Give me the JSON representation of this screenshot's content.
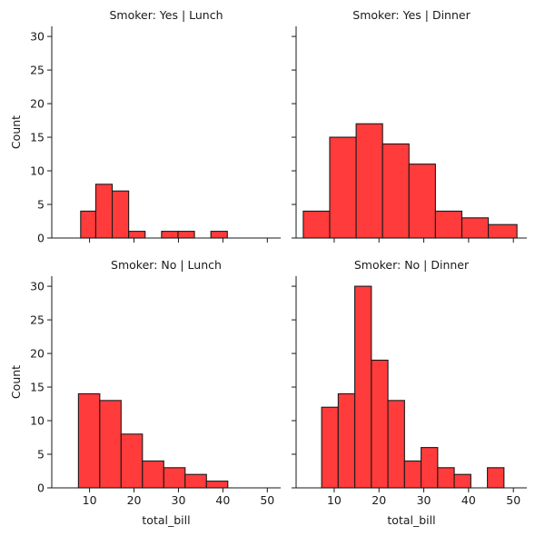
{
  "chart_data": {
    "type": "bar",
    "shared_y_ticks": [
      0,
      5,
      10,
      15,
      20,
      25,
      30
    ],
    "shared_x_ticks": [
      10,
      20,
      30,
      40,
      50
    ],
    "xlim": [
      1.5,
      53
    ],
    "ylim": [
      0,
      31.5
    ],
    "xlabel": "total_bill",
    "ylabel": "Count",
    "bar_color": "#ff3b3b",
    "edge_color": "#1a1a1a",
    "panels": [
      {
        "title": "Smoker: Yes | Lunch",
        "bins": [
          {
            "x0": 8.0,
            "x1": 11.4,
            "count": 4
          },
          {
            "x0": 11.4,
            "x1": 15.1,
            "count": 8
          },
          {
            "x0": 15.1,
            "x1": 18.8,
            "count": 7
          },
          {
            "x0": 18.8,
            "x1": 22.5,
            "count": 1
          },
          {
            "x0": 22.5,
            "x1": 26.2,
            "count": 0
          },
          {
            "x0": 26.2,
            "x1": 29.9,
            "count": 1
          },
          {
            "x0": 29.9,
            "x1": 33.6,
            "count": 1
          },
          {
            "x0": 33.6,
            "x1": 37.3,
            "count": 0
          },
          {
            "x0": 37.3,
            "x1": 41.0,
            "count": 1
          }
        ]
      },
      {
        "title": "Smoker: Yes | Dinner",
        "bins": [
          {
            "x0": 3.1,
            "x1": 9.0,
            "count": 4
          },
          {
            "x0": 9.0,
            "x1": 14.9,
            "count": 15
          },
          {
            "x0": 14.9,
            "x1": 20.8,
            "count": 17
          },
          {
            "x0": 20.8,
            "x1": 26.7,
            "count": 14
          },
          {
            "x0": 26.7,
            "x1": 32.6,
            "count": 11
          },
          {
            "x0": 32.6,
            "x1": 38.5,
            "count": 4
          },
          {
            "x0": 38.5,
            "x1": 44.4,
            "count": 3
          },
          {
            "x0": 44.4,
            "x1": 50.8,
            "count": 2
          }
        ]
      },
      {
        "title": "Smoker: No | Lunch",
        "bins": [
          {
            "x0": 7.5,
            "x1": 12.3,
            "count": 14
          },
          {
            "x0": 12.3,
            "x1": 17.1,
            "count": 13
          },
          {
            "x0": 17.1,
            "x1": 21.9,
            "count": 8
          },
          {
            "x0": 21.9,
            "x1": 26.7,
            "count": 4
          },
          {
            "x0": 26.7,
            "x1": 31.5,
            "count": 3
          },
          {
            "x0": 31.5,
            "x1": 36.3,
            "count": 2
          },
          {
            "x0": 36.3,
            "x1": 41.1,
            "count": 1
          }
        ]
      },
      {
        "title": "Smoker: No | Dinner",
        "bins": [
          {
            "x0": 7.2,
            "x1": 10.9,
            "count": 12
          },
          {
            "x0": 10.9,
            "x1": 14.6,
            "count": 14
          },
          {
            "x0": 14.6,
            "x1": 18.3,
            "count": 30
          },
          {
            "x0": 18.3,
            "x1": 22.0,
            "count": 19
          },
          {
            "x0": 22.0,
            "x1": 25.7,
            "count": 13
          },
          {
            "x0": 25.7,
            "x1": 29.4,
            "count": 4
          },
          {
            "x0": 29.4,
            "x1": 33.1,
            "count": 6
          },
          {
            "x0": 33.1,
            "x1": 36.8,
            "count": 3
          },
          {
            "x0": 36.8,
            "x1": 40.5,
            "count": 2
          },
          {
            "x0": 40.5,
            "x1": 44.2,
            "count": 0
          },
          {
            "x0": 44.2,
            "x1": 47.9,
            "count": 3
          }
        ]
      }
    ]
  }
}
